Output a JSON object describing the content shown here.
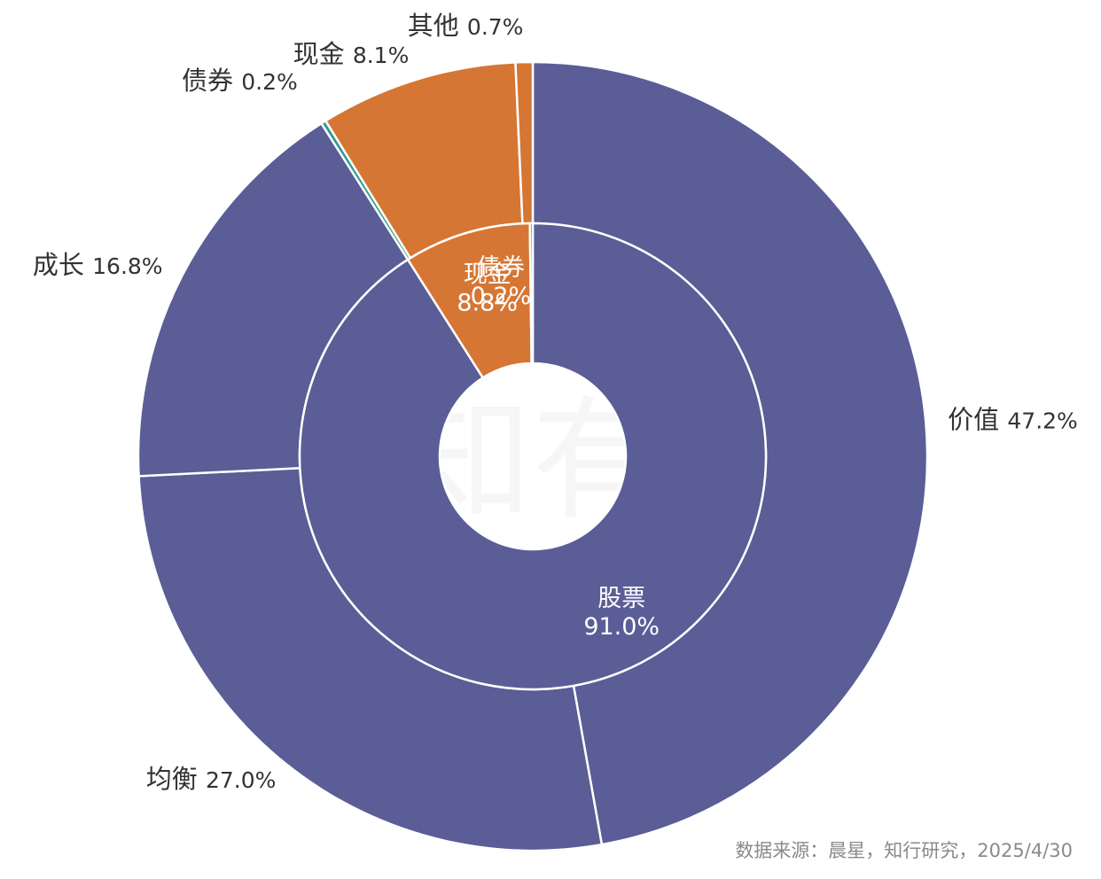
{
  "chart_data": {
    "type": "pie",
    "variant": "nested-donut",
    "colors": {
      "equity": "#5A5D96",
      "cash": "#D67634",
      "bond": "#2A9D8F",
      "separator": "#ffffff"
    },
    "inner_ring": [
      {
        "label": "股票",
        "value": 91.0,
        "display": "91.0%",
        "color_key": "equity"
      },
      {
        "label": "现金",
        "value": 8.8,
        "display": "8.8%",
        "color_key": "cash"
      },
      {
        "label": "债券",
        "value": 0.2,
        "display": "0.2%",
        "color_key": "bond"
      }
    ],
    "outer_ring": [
      {
        "label": "价值",
        "value": 47.2,
        "display": "47.2%",
        "color_key": "equity"
      },
      {
        "label": "均衡",
        "value": 27.0,
        "display": "27.0%",
        "color_key": "equity"
      },
      {
        "label": "成长",
        "value": 16.8,
        "display": "16.8%",
        "color_key": "equity"
      },
      {
        "label": "债券",
        "value": 0.2,
        "display": "0.2%",
        "color_key": "bond"
      },
      {
        "label": "现金",
        "value": 8.1,
        "display": "8.1%",
        "color_key": "cash"
      },
      {
        "label": "其他",
        "value": 0.7,
        "display": "0.7%",
        "color_key": "cash"
      }
    ],
    "watermark": "有知有行",
    "source": "数据来源：晨星，知行研究，2025/4/30"
  }
}
